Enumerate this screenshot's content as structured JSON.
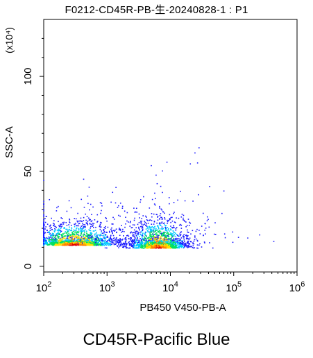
{
  "chart_data": {
    "type": "scatter",
    "title": "F0212-CD45R-PB-生-20240828-1 : P1",
    "xlabel": "PB450 V450-PB-A",
    "ylabel": "SSC-A",
    "y_multiplier_label": "(x10⁴)",
    "x_scale": "log",
    "xlim": [
      100,
      1000000
    ],
    "ylim": [
      -3,
      130
    ],
    "x_ticks": [
      {
        "value": 100,
        "base": "10",
        "exp": "2"
      },
      {
        "value": 1000,
        "base": "10",
        "exp": "3"
      },
      {
        "value": 10000,
        "base": "10",
        "exp": "4"
      },
      {
        "value": 100000,
        "base": "10",
        "exp": "5"
      },
      {
        "value": 1000000,
        "base": "10",
        "exp": "6"
      }
    ],
    "y_ticks": [
      0,
      50,
      100
    ],
    "grid": false,
    "populations": [
      {
        "name": "",
        "x_center": 300,
        "x_log_spread": 0.33,
        "y_center": 11,
        "y_spread": 3.5,
        "density": 0.5
      },
      {
        "name": "",
        "x_center": 6500,
        "x_log_spread": 0.22,
        "y_center": 9.5,
        "y_spread": 4.5,
        "density": 0.5
      }
    ],
    "colormap": [
      "#1a1aff",
      "#00c8ff",
      "#00e060",
      "#ffe000",
      "#ff8000",
      "#e00000"
    ]
  },
  "caption": "CD45R-Pacific Blue"
}
